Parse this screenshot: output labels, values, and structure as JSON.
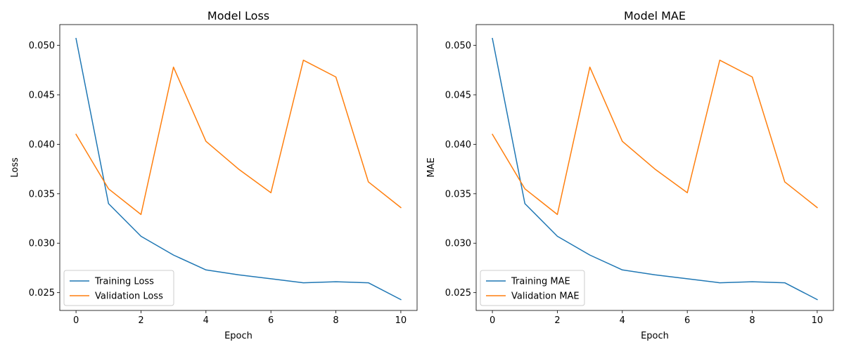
{
  "colors": {
    "training": "#1f77b4",
    "validation": "#ff7f0e"
  },
  "chart_data": [
    {
      "type": "line",
      "title": "Model Loss",
      "xlabel": "Epoch",
      "ylabel": "Loss",
      "xlim": [
        -0.5,
        10.5
      ],
      "ylim": [
        0.0232,
        0.0521
      ],
      "xticks": [
        0,
        2,
        4,
        6,
        8,
        10
      ],
      "yticks": [
        0.025,
        0.03,
        0.035,
        0.04,
        0.045,
        0.05
      ],
      "ytick_labels": [
        "0.025",
        "0.030",
        "0.035",
        "0.040",
        "0.045",
        "0.050"
      ],
      "x": [
        0,
        1,
        2,
        3,
        4,
        5,
        6,
        7,
        8,
        9,
        10
      ],
      "grid": false,
      "legend_position": "lower-left",
      "series": [
        {
          "name": "Training Loss",
          "color": "#1f77b4",
          "values": [
            0.0507,
            0.034,
            0.0307,
            0.0288,
            0.0273,
            0.0268,
            0.0264,
            0.026,
            0.0261,
            0.026,
            0.0243
          ]
        },
        {
          "name": "Validation Loss",
          "color": "#ff7f0e",
          "values": [
            0.041,
            0.0355,
            0.0329,
            0.0478,
            0.0403,
            0.0375,
            0.0351,
            0.0485,
            0.0468,
            0.0362,
            0.0336
          ]
        }
      ]
    },
    {
      "type": "line",
      "title": "Model MAE",
      "xlabel": "Epoch",
      "ylabel": "MAE",
      "xlim": [
        -0.5,
        10.5
      ],
      "ylim": [
        0.0232,
        0.0521
      ],
      "xticks": [
        0,
        2,
        4,
        6,
        8,
        10
      ],
      "yticks": [
        0.025,
        0.03,
        0.035,
        0.04,
        0.045,
        0.05
      ],
      "ytick_labels": [
        "0.025",
        "0.030",
        "0.035",
        "0.040",
        "0.045",
        "0.050"
      ],
      "x": [
        0,
        1,
        2,
        3,
        4,
        5,
        6,
        7,
        8,
        9,
        10
      ],
      "grid": false,
      "legend_position": "lower-left",
      "series": [
        {
          "name": "Training MAE",
          "color": "#1f77b4",
          "values": [
            0.0507,
            0.034,
            0.0307,
            0.0288,
            0.0273,
            0.0268,
            0.0264,
            0.026,
            0.0261,
            0.026,
            0.0243
          ]
        },
        {
          "name": "Validation MAE",
          "color": "#ff7f0e",
          "values": [
            0.041,
            0.0355,
            0.0329,
            0.0478,
            0.0403,
            0.0375,
            0.0351,
            0.0485,
            0.0468,
            0.0362,
            0.0336
          ]
        }
      ]
    }
  ]
}
